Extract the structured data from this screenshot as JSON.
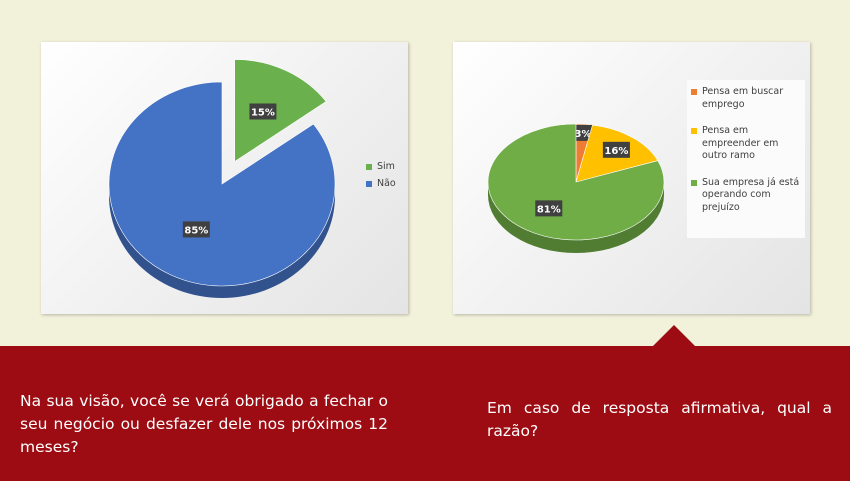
{
  "chart_data": [
    {
      "type": "pie",
      "categories": [
        "Sim",
        "Não"
      ],
      "values": [
        15,
        85
      ],
      "data_labels": [
        "15%",
        "85%"
      ],
      "colors": [
        "#6ab04c",
        "#4472c4"
      ],
      "legend_position": "right",
      "exploded": "Sim"
    },
    {
      "type": "pie",
      "categories": [
        "Pensa em buscar emprego",
        "Pensa em empreender em outro ramo",
        "Sua empresa já está operando com prejuízo"
      ],
      "values": [
        3,
        16,
        81
      ],
      "data_labels": [
        "3%",
        "16%",
        "81%"
      ],
      "colors": [
        "#ed7d31",
        "#ffc000",
        "#70ad47"
      ],
      "legend_position": "right"
    }
  ],
  "questions": {
    "left": "Na sua visão, você se verá obrigado a fechar o seu negócio ou desfazer dele nos próximos 12 meses?",
    "right": "Em caso de resposta afirmativa, qual a razão?"
  }
}
